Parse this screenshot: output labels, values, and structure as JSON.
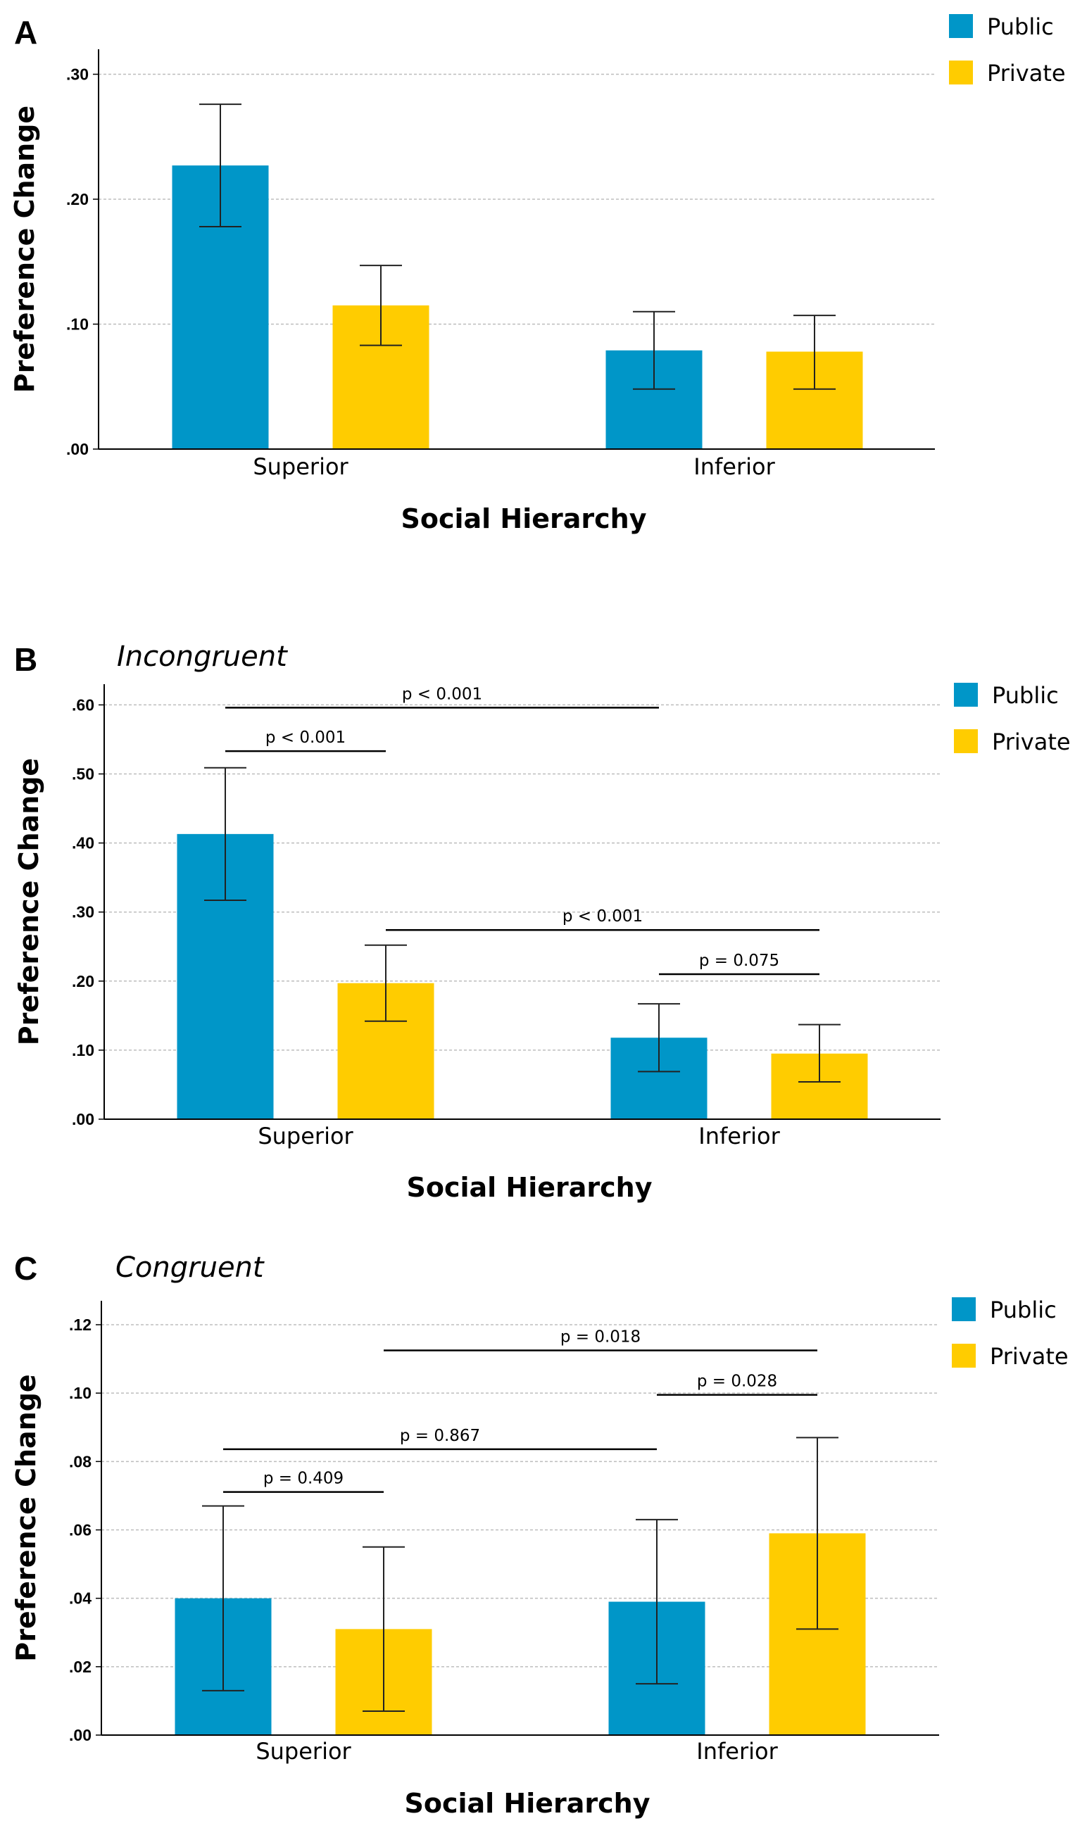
{
  "chart_data": [
    {
      "type": "bar",
      "panel": "A",
      "title": "",
      "xlabel": "Social Hierarchy",
      "ylabel": "Preference Change",
      "ylim": [
        0,
        0.32
      ],
      "yticks": [
        0,
        0.1,
        0.2,
        0.3
      ],
      "ytick_labels": [
        ".00",
        ".10",
        ".20",
        ".30"
      ],
      "categories": [
        "Superior",
        "Inferior"
      ],
      "series": [
        {
          "name": "Public",
          "color": "#0096C8",
          "values": [
            0.227,
            0.079
          ],
          "err_low": [
            0.178,
            0.048
          ],
          "err_high": [
            0.276,
            0.11
          ]
        },
        {
          "name": "Private",
          "color": "#FFCC00",
          "values": [
            0.115,
            0.078
          ],
          "err_low": [
            0.083,
            0.048
          ],
          "err_high": [
            0.147,
            0.107
          ]
        }
      ],
      "significance": [],
      "legend": "top-right",
      "grid": true
    },
    {
      "type": "bar",
      "panel": "B",
      "title": "Incongruent",
      "xlabel": "Social Hierarchy",
      "ylabel": "Preference Change",
      "ylim": [
        0,
        0.63
      ],
      "yticks": [
        0,
        0.1,
        0.2,
        0.3,
        0.4,
        0.5,
        0.6
      ],
      "ytick_labels": [
        ".00",
        ".10",
        ".20",
        ".30",
        ".40",
        ".50",
        ".60"
      ],
      "categories": [
        "Superior",
        "Inferior"
      ],
      "series": [
        {
          "name": "Public",
          "color": "#0096C8",
          "values": [
            0.413,
            0.118
          ],
          "err_low": [
            0.317,
            0.069
          ],
          "err_high": [
            0.509,
            0.167
          ]
        },
        {
          "name": "Private",
          "color": "#FFCC00",
          "values": [
            0.197,
            0.095
          ],
          "err_low": [
            0.142,
            0.054
          ],
          "err_high": [
            0.252,
            0.137
          ]
        }
      ],
      "significance": [
        {
          "label": "p < 0.001",
          "from": [
            0,
            0
          ],
          "to": [
            1,
            0
          ],
          "y": 0.596
        },
        {
          "label": "p < 0.001",
          "from": [
            0,
            0
          ],
          "to": [
            0,
            1
          ],
          "y": 0.533
        },
        {
          "label": "p < 0.001",
          "from": [
            0,
            1
          ],
          "to": [
            1,
            1
          ],
          "y": 0.274
        },
        {
          "label": "p = 0.075",
          "from": [
            1,
            0
          ],
          "to": [
            1,
            1
          ],
          "y": 0.21
        }
      ],
      "legend": "top-right",
      "grid": true
    },
    {
      "type": "bar",
      "panel": "C",
      "title": "Congruent",
      "xlabel": "Social Hierarchy",
      "ylabel": "Preference Change",
      "ylim": [
        0,
        0.127
      ],
      "yticks": [
        0,
        0.02,
        0.04,
        0.06,
        0.08,
        0.1,
        0.12
      ],
      "ytick_labels": [
        ".00",
        ".02",
        ".04",
        ".06",
        ".08",
        ".10",
        ".12"
      ],
      "categories": [
        "Superior",
        "Inferior"
      ],
      "series": [
        {
          "name": "Public",
          "color": "#0096C8",
          "values": [
            0.04,
            0.039
          ],
          "err_low": [
            0.013,
            0.015
          ],
          "err_high": [
            0.067,
            0.063
          ]
        },
        {
          "name": "Private",
          "color": "#FFCC00",
          "values": [
            0.031,
            0.059
          ],
          "err_low": [
            0.007,
            0.031
          ],
          "err_high": [
            0.055,
            0.087
          ]
        }
      ],
      "significance": [
        {
          "label": "p = 0.018",
          "from": [
            0,
            1
          ],
          "to": [
            1,
            1
          ],
          "y": 0.1125
        },
        {
          "label": "p = 0.028",
          "from": [
            1,
            0
          ],
          "to": [
            1,
            1
          ],
          "y": 0.0995
        },
        {
          "label": "p = 0.867",
          "from": [
            0,
            0
          ],
          "to": [
            1,
            0
          ],
          "y": 0.0836
        },
        {
          "label": "p = 0.409",
          "from": [
            0,
            0
          ],
          "to": [
            0,
            1
          ],
          "y": 0.0711
        }
      ],
      "legend": "top-right",
      "grid": true
    }
  ]
}
